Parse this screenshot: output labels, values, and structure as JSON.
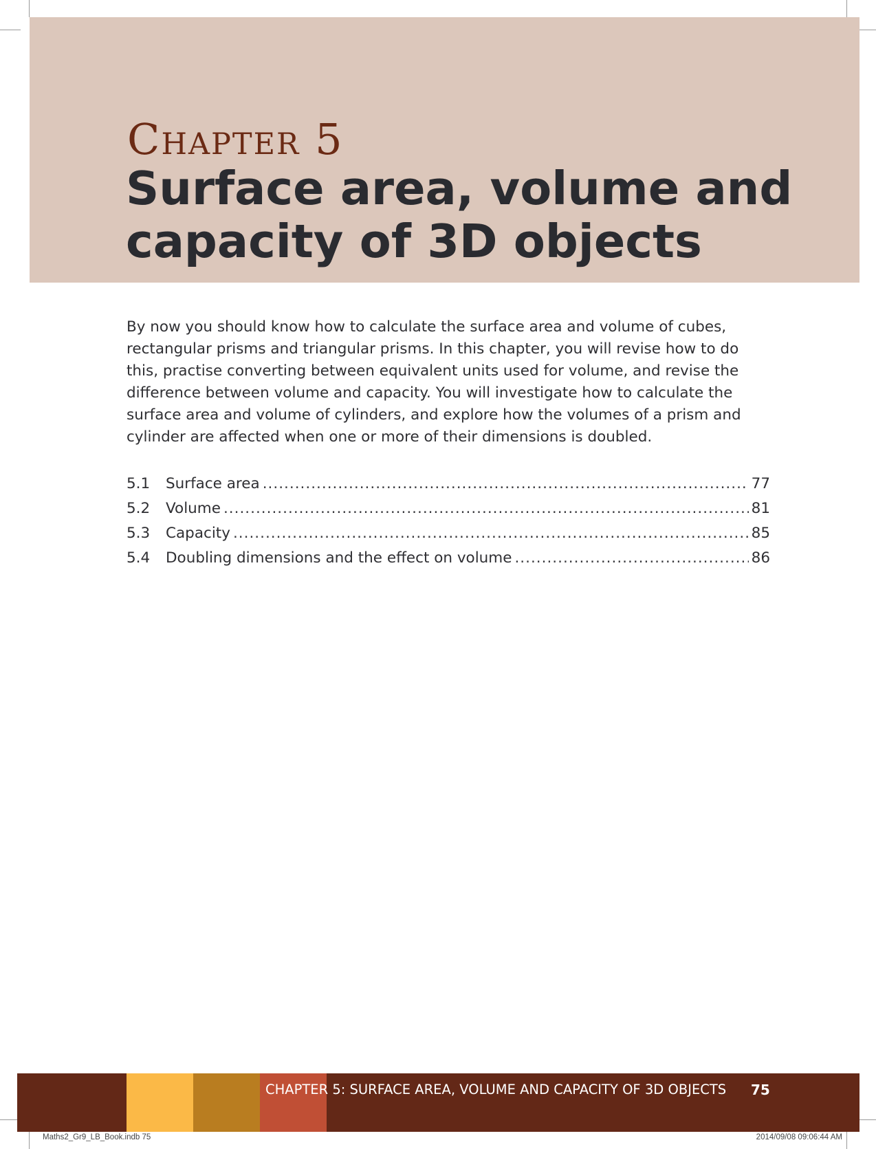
{
  "header": {
    "chapter_label": "Chapter 5",
    "title": "Surface area, volume and capacity of 3D objects"
  },
  "intro": "By now you should know how to calculate the surface area and volume of cubes, rectangular prisms and triangular prisms. In this chapter, you will revise how to do this, practise converting between equivalent units used for volume, and revise the difference between volume and capacity. You will investigate how to calculate the surface area and volume of cylinders, and explore how the volumes of a prism and cylinder are affected when one or more of their dimensions is doubled.",
  "toc": [
    {
      "number": "5.1",
      "title": "Surface area",
      "page": "77"
    },
    {
      "number": "5.2",
      "title": "Volume",
      "page": "81"
    },
    {
      "number": "5.3",
      "title": "Capacity",
      "page": "85"
    },
    {
      "number": "5.4",
      "title": "Doubling dimensions and the effect on volume",
      "page": "86"
    }
  ],
  "footer": {
    "running_head": "CHAPTER 5: SURFACE AREA, VOLUME AND CAPACITY OF 3D OBJECTS",
    "page_number": "75"
  },
  "slug": {
    "file": "Maths2_Gr9_LB_Book.indb   75",
    "timestamp": "2014/09/08   09:06:44 AM"
  },
  "colors": {
    "header_band": "#dcc7bb",
    "chapter_label": "#6b2a14",
    "footer_band": "#632817",
    "swatch_yellow": "#fbb947",
    "swatch_ochre": "#b97d20",
    "swatch_red": "#c04f35"
  }
}
